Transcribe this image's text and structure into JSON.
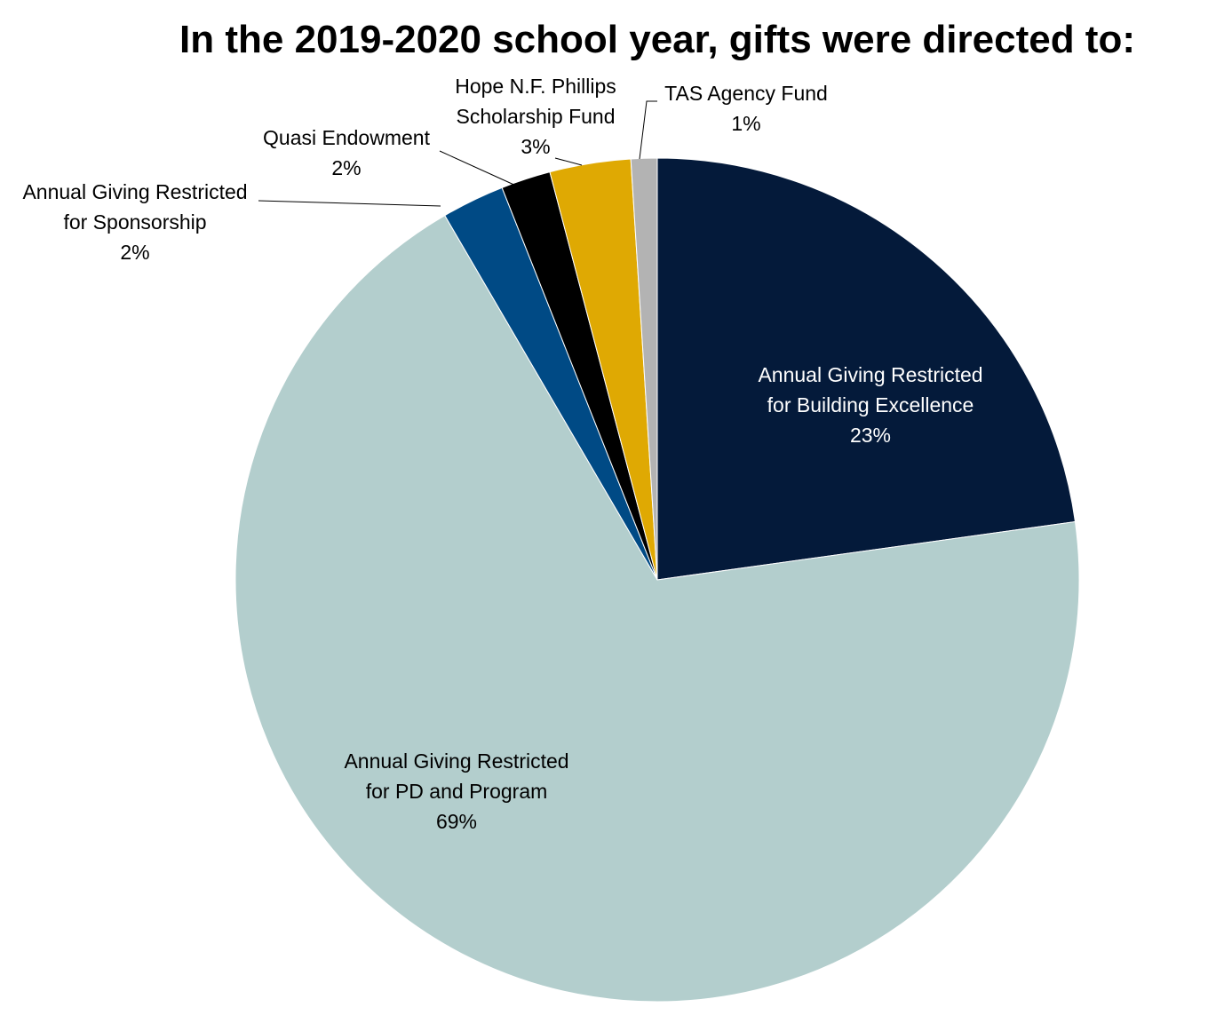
{
  "chart_data": {
    "type": "pie",
    "title": "In the 2019-2020 school year, gifts were directed to:",
    "start": "12 o'clock, clockwise",
    "slices": [
      {
        "id": "building-excellence",
        "label_lines": [
          "Annual Giving Restricted",
          "for Building Excellence"
        ],
        "percent_label": "23%",
        "value": 22.8,
        "color": "#041A3A",
        "label_color": "#ffffff",
        "label_placement": "inside"
      },
      {
        "id": "pd-and-program",
        "label_lines": [
          "Annual Giving Restricted",
          "for PD and Program"
        ],
        "percent_label": "69%",
        "value": 68.8,
        "color": "#B3CECD",
        "label_color": "#000000",
        "label_placement": "inside"
      },
      {
        "id": "sponsorship",
        "label_lines": [
          "Annual Giving Restricted",
          "for Sponsorship"
        ],
        "percent_label": "2%",
        "value": 2.4,
        "color": "#004A85",
        "label_color": "#000000",
        "label_placement": "outside"
      },
      {
        "id": "quasi-endowment",
        "label_lines": [
          "Quasi Endowment"
        ],
        "percent_label": "2%",
        "value": 1.9,
        "color": "#000000",
        "label_color": "#000000",
        "label_placement": "outside"
      },
      {
        "id": "phillips-scholarship",
        "label_lines": [
          "Hope N.F. Phillips",
          "Scholarship Fund"
        ],
        "percent_label": "3%",
        "value": 3.1,
        "color": "#DFA903",
        "label_color": "#000000",
        "label_placement": "outside"
      },
      {
        "id": "tas-agency-fund",
        "label_lines": [
          "TAS Agency Fund"
        ],
        "percent_label": "1%",
        "value": 1.0,
        "color": "#B3B3B3",
        "label_color": "#000000",
        "label_placement": "outside"
      }
    ]
  }
}
